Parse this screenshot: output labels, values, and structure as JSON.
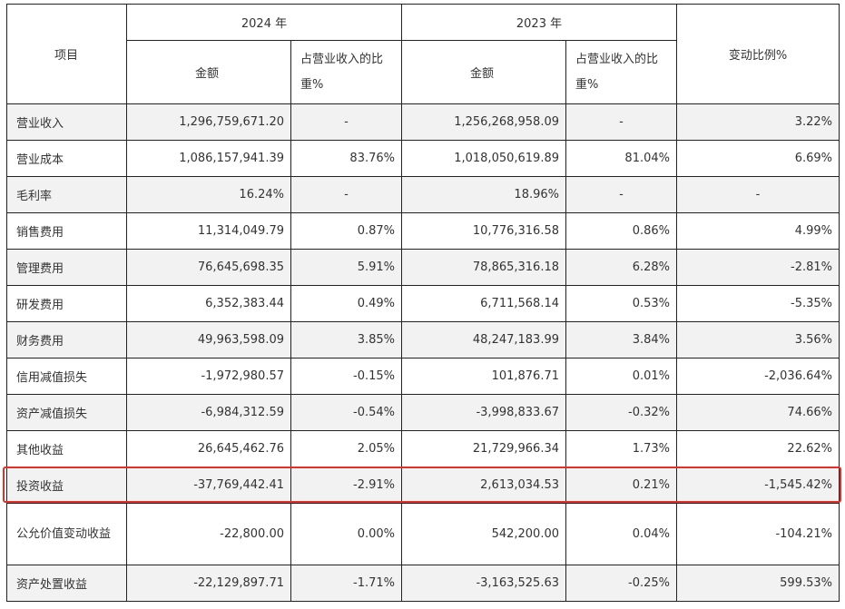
{
  "header": {
    "item_label": "项目",
    "year_2024": "2024 年",
    "year_2023": "2023 年",
    "amount_label": "金额",
    "ratio_label": "占营业收入的比重%",
    "change_label": "变动比例%"
  },
  "rows": [
    {
      "label": "营业收入",
      "amt_2024": "1,296,759,671.20",
      "ratio_2024": "-",
      "amt_2023": "1,256,268,958.09",
      "ratio_2023": "-",
      "change": "3.22%"
    },
    {
      "label": "营业成本",
      "amt_2024": "1,086,157,941.39",
      "ratio_2024": "83.76%",
      "amt_2023": "1,018,050,619.89",
      "ratio_2023": "81.04%",
      "change": "6.69%"
    },
    {
      "label": "毛利率",
      "amt_2024": "16.24%",
      "ratio_2024": "-",
      "amt_2023": "18.96%",
      "ratio_2023": "-",
      "change": "-"
    },
    {
      "label": "销售费用",
      "amt_2024": "11,314,049.79",
      "ratio_2024": "0.87%",
      "amt_2023": "10,776,316.58",
      "ratio_2023": "0.86%",
      "change": "4.99%"
    },
    {
      "label": "管理费用",
      "amt_2024": "76,645,698.35",
      "ratio_2024": "5.91%",
      "amt_2023": "78,865,316.18",
      "ratio_2023": "6.28%",
      "change": "-2.81%"
    },
    {
      "label": "研发费用",
      "amt_2024": "6,352,383.44",
      "ratio_2024": "0.49%",
      "amt_2023": "6,711,568.14",
      "ratio_2023": "0.53%",
      "change": "-5.35%"
    },
    {
      "label": "财务费用",
      "amt_2024": "49,963,598.09",
      "ratio_2024": "3.85%",
      "amt_2023": "48,247,183.99",
      "ratio_2023": "3.84%",
      "change": "3.56%"
    },
    {
      "label": "信用减值损失",
      "amt_2024": "-1,972,980.57",
      "ratio_2024": "-0.15%",
      "amt_2023": "101,876.71",
      "ratio_2023": "0.01%",
      "change": "-2,036.64%"
    },
    {
      "label": "资产减值损失",
      "amt_2024": "-6,984,312.59",
      "ratio_2024": "-0.54%",
      "amt_2023": "-3,998,833.67",
      "ratio_2023": "-0.32%",
      "change": "74.66%"
    },
    {
      "label": "其他收益",
      "amt_2024": "26,645,462.76",
      "ratio_2024": "2.05%",
      "amt_2023": "21,729,966.34",
      "ratio_2023": "1.73%",
      "change": "22.62%"
    },
    {
      "label": "投资收益",
      "amt_2024": "-37,769,442.41",
      "ratio_2024": "-2.91%",
      "amt_2023": "2,613,034.53",
      "ratio_2023": "0.21%",
      "change": "-1,545.42%"
    },
    {
      "label": "公允价值变动收益",
      "amt_2024": "-22,800.00",
      "ratio_2024": "0.00%",
      "amt_2023": "542,200.00",
      "ratio_2023": "0.04%",
      "change": "-104.21%"
    },
    {
      "label": "资产处置收益",
      "amt_2024": "-22,129,897.71",
      "ratio_2024": "-1.71%",
      "amt_2023": "-3,163,525.63",
      "ratio_2023": "-0.25%",
      "change": "599.53%"
    }
  ],
  "highlight_color": "#e0302a",
  "shaded_row_color": "#f2f2f2"
}
